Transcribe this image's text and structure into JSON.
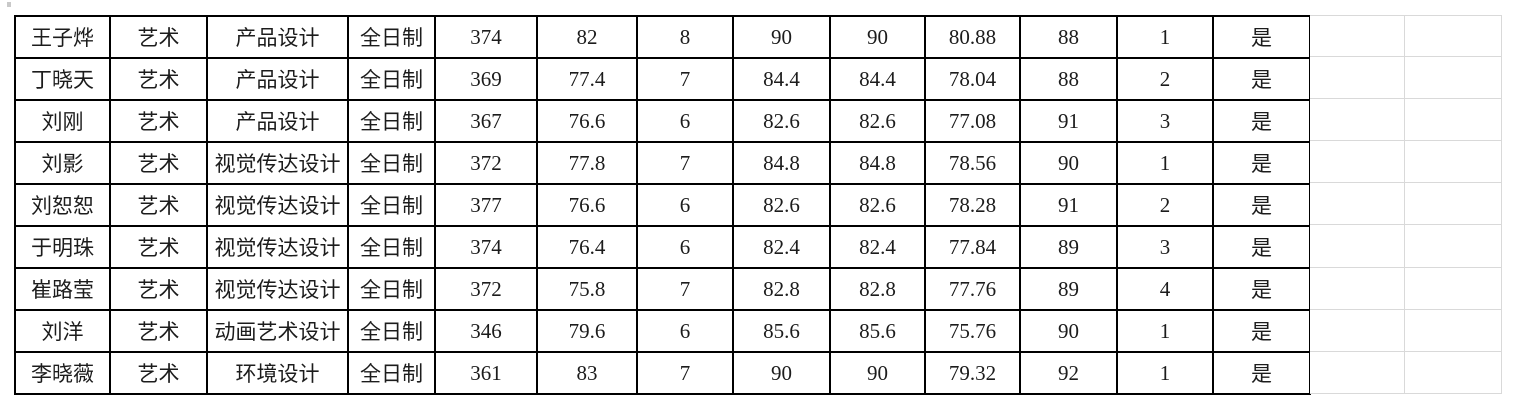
{
  "colors": {
    "table_border": "#000000",
    "sheet_gridline": "#d9d9d9",
    "text": "#1c1c1c",
    "background": "#ffffff"
  },
  "table": {
    "rows": [
      [
        "王子烨",
        "艺术",
        "产品设计",
        "全日制",
        "374",
        "82",
        "8",
        "90",
        "90",
        "80.88",
        "88",
        "1",
        "是"
      ],
      [
        "丁晓天",
        "艺术",
        "产品设计",
        "全日制",
        "369",
        "77.4",
        "7",
        "84.4",
        "84.4",
        "78.04",
        "88",
        "2",
        "是"
      ],
      [
        "刘刚",
        "艺术",
        "产品设计",
        "全日制",
        "367",
        "76.6",
        "6",
        "82.6",
        "82.6",
        "77.08",
        "91",
        "3",
        "是"
      ],
      [
        "刘影",
        "艺术",
        "视觉传达设计",
        "全日制",
        "372",
        "77.8",
        "7",
        "84.8",
        "84.8",
        "78.56",
        "90",
        "1",
        "是"
      ],
      [
        "刘恕恕",
        "艺术",
        "视觉传达设计",
        "全日制",
        "377",
        "76.6",
        "6",
        "82.6",
        "82.6",
        "78.28",
        "91",
        "2",
        "是"
      ],
      [
        "于明珠",
        "艺术",
        "视觉传达设计",
        "全日制",
        "374",
        "76.4",
        "6",
        "82.4",
        "82.4",
        "77.84",
        "89",
        "3",
        "是"
      ],
      [
        "崔路莹",
        "艺术",
        "视觉传达设计",
        "全日制",
        "372",
        "75.8",
        "7",
        "82.8",
        "82.8",
        "77.76",
        "89",
        "4",
        "是"
      ],
      [
        "刘洋",
        "艺术",
        "动画艺术设计",
        "全日制",
        "346",
        "79.6",
        "6",
        "85.6",
        "85.6",
        "75.76",
        "90",
        "1",
        "是"
      ],
      [
        "李晓薇",
        "艺术",
        "环境设计",
        "全日制",
        "361",
        "83",
        "7",
        "90",
        "90",
        "79.32",
        "92",
        "1",
        "是"
      ]
    ]
  },
  "empty_grid": {
    "columns": 2,
    "rows": 9
  }
}
